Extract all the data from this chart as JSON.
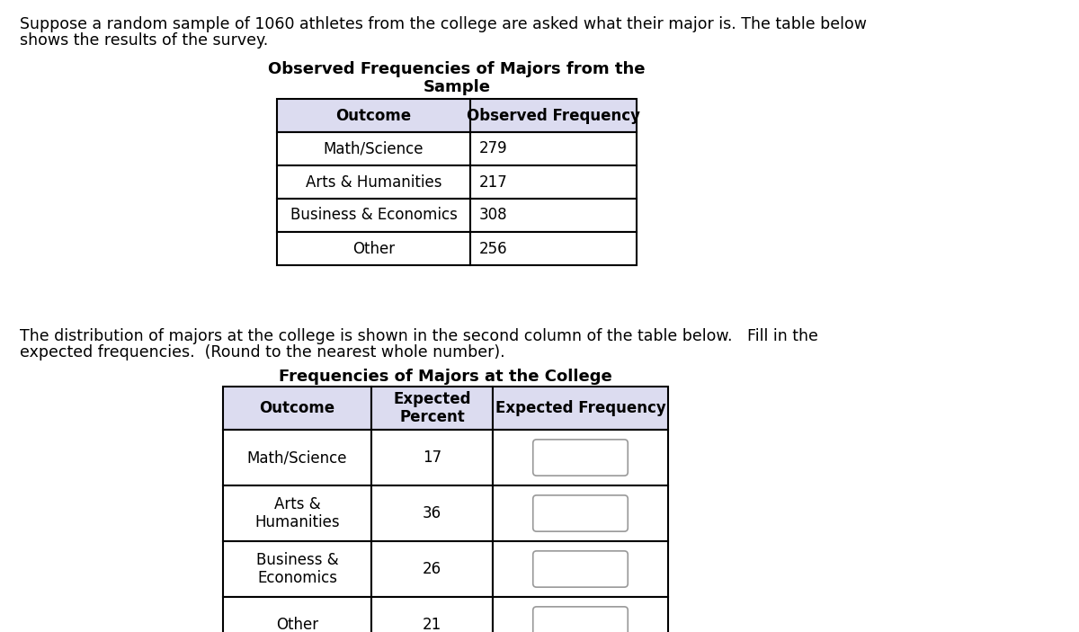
{
  "intro_text_line1": "Suppose a random sample of 1060 athletes from the college are asked what their major is. The table below",
  "intro_text_line2": "shows the results of the survey.",
  "middle_text_line1": "The distribution of majors at the college is shown in the second column of the table below.   Fill in the",
  "middle_text_line2": "expected frequencies.  (Round to the nearest whole number).",
  "table1_title_line1": "Observed Frequencies of Majors from the",
  "table1_title_line2": "Sample",
  "table1_headers": [
    "Outcome",
    "Observed Frequency"
  ],
  "table1_rows": [
    [
      "Math/Science",
      "279"
    ],
    [
      "Arts & Humanities",
      "217"
    ],
    [
      "Business & Economics",
      "308"
    ],
    [
      "Other",
      "256"
    ]
  ],
  "table2_title": "Frequencies of Majors at the College",
  "table2_headers": [
    "Outcome",
    "Expected\nPercent",
    "Expected Frequency"
  ],
  "table2_rows": [
    [
      "Math/Science",
      "17"
    ],
    [
      "Arts &\nHumanities",
      "36"
    ],
    [
      "Business &\nEconomics",
      "26"
    ],
    [
      "Other",
      "21"
    ]
  ],
  "header_bg_color": "#dcdcf0",
  "bg_color": "#ffffff",
  "text_color": "#000000",
  "font_size_body": 12.5,
  "font_size_title_bold": 13,
  "font_size_table": 12
}
